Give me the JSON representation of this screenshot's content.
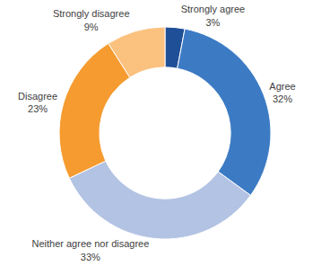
{
  "chart_data": {
    "type": "pie",
    "categories": [
      "Strongly agree",
      "Agree",
      "Neither agree nor disagree",
      "Disagree",
      "Strongly disagree"
    ],
    "values": [
      3,
      32,
      33,
      23,
      9
    ],
    "value_labels": [
      "3%",
      "32%",
      "33%",
      "23%",
      "9%"
    ],
    "colors": [
      "#1f4f96",
      "#3c7bc4",
      "#b3c3e3",
      "#f59b2f",
      "#fbc17e"
    ],
    "data_labels": true
  }
}
